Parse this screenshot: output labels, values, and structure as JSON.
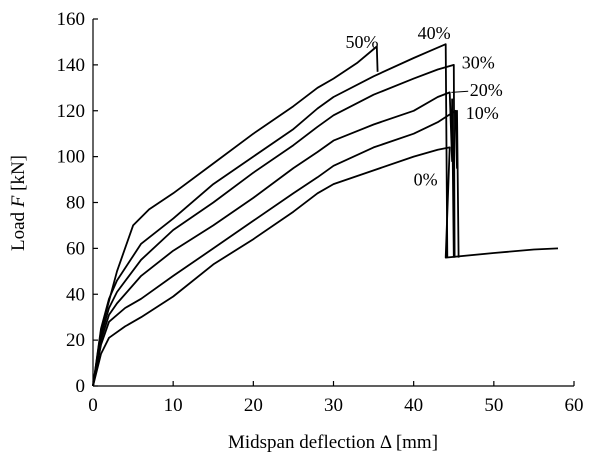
{
  "chart_data": {
    "type": "line",
    "title": "",
    "xlabel": "Midspan deflection Δ [mm]",
    "ylabel_prefix": "Load ",
    "ylabel_var": "F",
    "ylabel_suffix": " [kN]",
    "xlim": [
      0,
      60
    ],
    "ylim": [
      0,
      160
    ],
    "xticks": [
      0,
      10,
      20,
      30,
      40,
      50,
      60
    ],
    "yticks": [
      0,
      20,
      40,
      60,
      80,
      100,
      120,
      140,
      160
    ],
    "grid": false,
    "legend": "none (series labelled directly on curves)",
    "line_color": "#000000",
    "series": [
      {
        "name": "0%",
        "points": [
          [
            0,
            0
          ],
          [
            1,
            14
          ],
          [
            2,
            21
          ],
          [
            4,
            26
          ],
          [
            6,
            30
          ],
          [
            10,
            39
          ],
          [
            15,
            53
          ],
          [
            20,
            64
          ],
          [
            25,
            76
          ],
          [
            28,
            84
          ],
          [
            30,
            88
          ],
          [
            35,
            94
          ],
          [
            40,
            100
          ],
          [
            43,
            103
          ],
          [
            44.5,
            104
          ],
          [
            44.5,
            104
          ],
          [
            44,
            56
          ],
          [
            50,
            58
          ],
          [
            55,
            59.5
          ],
          [
            58,
            60
          ]
        ]
      },
      {
        "name": "10%",
        "points": [
          [
            0,
            0
          ],
          [
            1,
            18
          ],
          [
            2,
            28
          ],
          [
            4,
            34
          ],
          [
            6,
            38
          ],
          [
            10,
            48
          ],
          [
            15,
            60
          ],
          [
            20,
            72
          ],
          [
            25,
            84
          ],
          [
            28,
            91
          ],
          [
            30,
            96
          ],
          [
            35,
            104
          ],
          [
            40,
            110
          ],
          [
            43,
            115
          ],
          [
            45.2,
            120
          ],
          [
            45.2,
            120
          ],
          [
            45.4,
            95
          ],
          [
            45.4,
            120
          ],
          [
            45.6,
            56
          ]
        ]
      },
      {
        "name": "20%",
        "points": [
          [
            0,
            0
          ],
          [
            1,
            20
          ],
          [
            2,
            31
          ],
          [
            3,
            36
          ],
          [
            6,
            48
          ],
          [
            10,
            59
          ],
          [
            15,
            70
          ],
          [
            20,
            82
          ],
          [
            25,
            95
          ],
          [
            28,
            102
          ],
          [
            30,
            107
          ],
          [
            35,
            114
          ],
          [
            40,
            120
          ],
          [
            43,
            126
          ],
          [
            44.5,
            128
          ],
          [
            44.5,
            128
          ],
          [
            44.8,
            98
          ],
          [
            44.8,
            125
          ],
          [
            45,
            56
          ]
        ]
      },
      {
        "name": "30%",
        "points": [
          [
            0,
            0
          ],
          [
            1,
            22
          ],
          [
            2,
            34
          ],
          [
            3,
            41
          ],
          [
            6,
            55
          ],
          [
            10,
            68
          ],
          [
            15,
            80
          ],
          [
            20,
            93
          ],
          [
            25,
            105
          ],
          [
            28,
            113
          ],
          [
            30,
            118
          ],
          [
            35,
            127
          ],
          [
            40,
            134
          ],
          [
            43,
            138
          ],
          [
            45,
            140
          ],
          [
            45,
            140
          ],
          [
            45.1,
            56
          ]
        ]
      },
      {
        "name": "40%",
        "points": [
          [
            0,
            0
          ],
          [
            1,
            25
          ],
          [
            2,
            38
          ],
          [
            3,
            46
          ],
          [
            6,
            62
          ],
          [
            10,
            73
          ],
          [
            15,
            88
          ],
          [
            20,
            100
          ],
          [
            25,
            112
          ],
          [
            28,
            121
          ],
          [
            30,
            126
          ],
          [
            35,
            135
          ],
          [
            40,
            143
          ],
          [
            42,
            146
          ],
          [
            44,
            149
          ],
          [
            44,
            149
          ],
          [
            44.2,
            56
          ]
        ]
      },
      {
        "name": "50%",
        "points": [
          [
            0,
            0
          ],
          [
            1,
            24
          ],
          [
            3,
            50
          ],
          [
            5,
            70
          ],
          [
            7,
            77
          ],
          [
            10,
            84
          ],
          [
            15,
            97
          ],
          [
            20,
            110
          ],
          [
            25,
            122
          ],
          [
            28,
            130
          ],
          [
            30,
            134
          ],
          [
            33,
            141
          ],
          [
            35.4,
            148
          ],
          [
            35.4,
            148
          ],
          [
            35.5,
            137
          ]
        ]
      }
    ],
    "annotations": [
      {
        "text": "50%",
        "x": 31.5,
        "y": 150
      },
      {
        "text": "40%",
        "x": 40.5,
        "y": 154
      },
      {
        "text": "30%",
        "x": 46,
        "y": 141
      },
      {
        "text": "20%",
        "x": 47,
        "y": 129
      },
      {
        "text": "10%",
        "x": 46.5,
        "y": 119
      },
      {
        "text": "0%",
        "x": 40,
        "y": 90
      }
    ]
  }
}
